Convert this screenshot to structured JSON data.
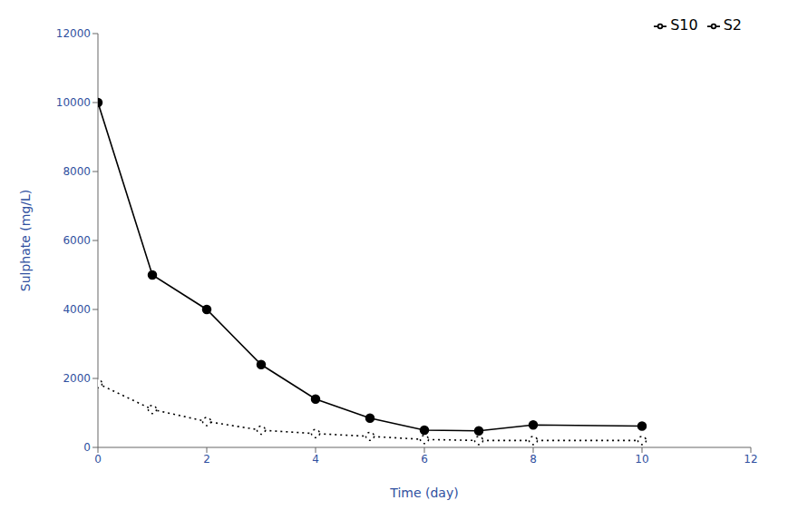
{
  "chart_data": {
    "type": "line",
    "xlabel": "Time (day)",
    "ylabel": "Sulphate (mg/L)",
    "x": [
      0,
      1,
      2,
      3,
      4,
      5,
      6,
      7,
      8,
      10
    ],
    "series": [
      {
        "name": "S10",
        "color": "#000000",
        "line_style": "solid",
        "marker": "circle",
        "values": [
          10000,
          5000,
          4000,
          2400,
          1400,
          850,
          500,
          480,
          650,
          620
        ]
      },
      {
        "name": "S2",
        "color": "#000000",
        "line_style": "dotted",
        "marker": "open_circle",
        "values": [
          1850,
          1100,
          750,
          500,
          400,
          320,
          230,
          200,
          200,
          200
        ]
      }
    ],
    "xlim": [
      0,
      12
    ],
    "ylim": [
      0,
      12000
    ],
    "xticks": [
      0,
      2,
      4,
      6,
      8,
      10,
      12
    ],
    "yticks": [
      0,
      2000,
      4000,
      6000,
      8000,
      10000,
      12000
    ],
    "grid": false,
    "legend": "upper right"
  }
}
